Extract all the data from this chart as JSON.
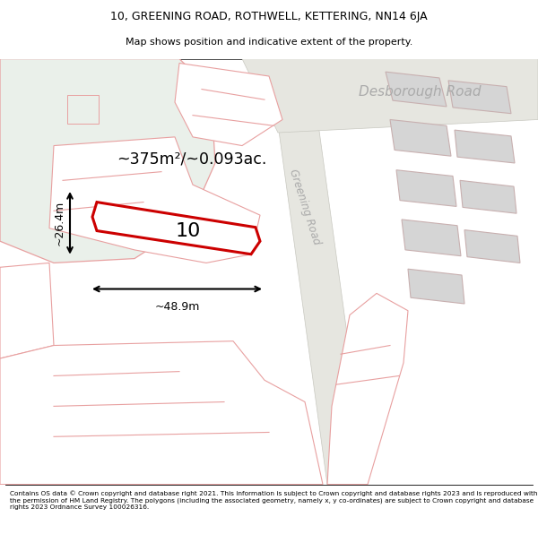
{
  "title_line1": "10, GREENING ROAD, ROTHWELL, KETTERING, NN14 6JA",
  "title_line2": "Map shows position and indicative extent of the property.",
  "footer_text": "Contains OS data © Crown copyright and database right 2021. This information is subject to Crown copyright and database rights 2023 and is reproduced with the permission of HM Land Registry. The polygons (including the associated geometry, namely x, y co-ordinates) are subject to Crown copyright and database rights 2023 Ordnance Survey 100026316.",
  "map_bg": "#f2f2ee",
  "green_area_color": "#eaf0ea",
  "building_fill": "#d5d5d5",
  "building_edge": "#c8b0b0",
  "road_fill": "#e6e6e0",
  "road_edge": "#c8c8c0",
  "plot_outline_color": "#cc0000",
  "light_red_line": "#e8a0a0",
  "road_label_color": "#aaaaaa",
  "label_10": "10",
  "area_label": "~375m²/~0.093ac.",
  "width_label": "~48.9m",
  "height_label": "~26.4m",
  "desborough_road_label": "Desborough Road",
  "greening_road_label": "Greening Road"
}
